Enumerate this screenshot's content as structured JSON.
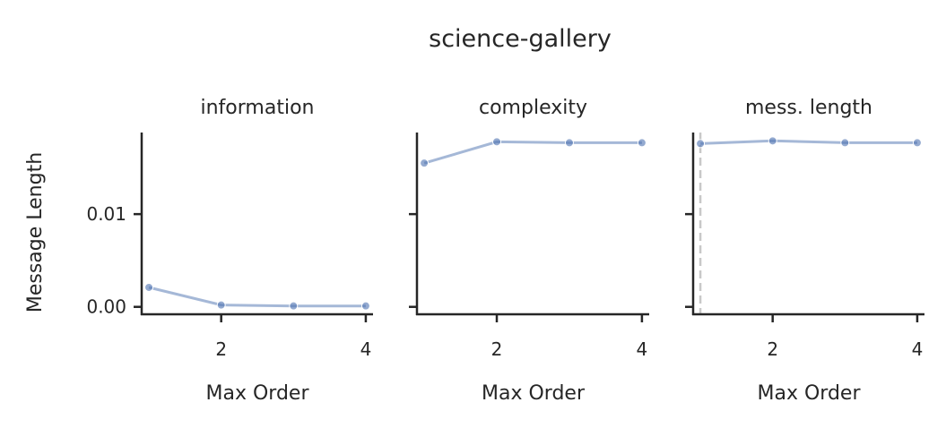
{
  "figure_title": "science-gallery",
  "colors": {
    "series": "#4c72b0",
    "axis": "#262626",
    "refline": "#c8c8c8"
  },
  "chart_data": [
    {
      "type": "line",
      "title": "information",
      "xlabel": "Max Order",
      "ylabel": "Message Length",
      "x": [
        1,
        2,
        3,
        4
      ],
      "xticks": [
        2,
        4
      ],
      "xtick_labels": [
        "2",
        "4"
      ],
      "yticks": [
        0.0,
        0.01
      ],
      "ytick_labels": [
        "0.00",
        "0.01"
      ],
      "xlim": [
        0.9,
        4.1
      ],
      "ylim": [
        -0.0008,
        0.0188
      ],
      "series": [
        {
          "values": [
            0.0021,
            0.0002,
            0.0001,
            0.0001
          ]
        }
      ],
      "grid": false,
      "legend": "none"
    },
    {
      "type": "line",
      "title": "complexity",
      "xlabel": "Max Order",
      "ylabel": "",
      "x": [
        1,
        2,
        3,
        4
      ],
      "xticks": [
        2,
        4
      ],
      "xtick_labels": [
        "2",
        "4"
      ],
      "yticks": [
        0.0,
        0.01
      ],
      "ytick_labels": [],
      "xlim": [
        0.9,
        4.1
      ],
      "ylim": [
        -0.0008,
        0.0188
      ],
      "series": [
        {
          "values": [
            0.0155,
            0.0178,
            0.0177,
            0.0177
          ]
        }
      ],
      "grid": false,
      "legend": "none"
    },
    {
      "type": "line",
      "title": "mess. length",
      "xlabel": "Max Order",
      "ylabel": "",
      "x": [
        1,
        2,
        3,
        4
      ],
      "xticks": [
        2,
        4
      ],
      "xtick_labels": [
        "2",
        "4"
      ],
      "yticks": [
        0.0,
        0.01
      ],
      "ytick_labels": [],
      "xlim": [
        0.9,
        4.1
      ],
      "ylim": [
        -0.0008,
        0.0188
      ],
      "series": [
        {
          "values": [
            0.0176,
            0.0179,
            0.0177,
            0.0177
          ]
        }
      ],
      "reference_line_x": 1,
      "grid": false,
      "legend": "none"
    }
  ]
}
